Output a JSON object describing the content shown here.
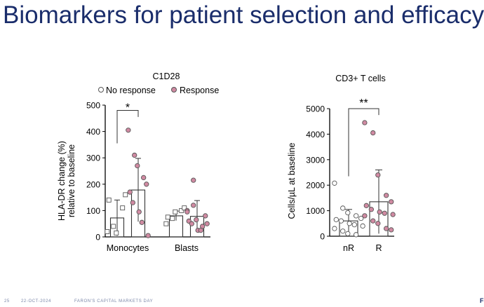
{
  "slide": {
    "title": "Biomarkers for patient selection and efficacy",
    "footer_page": "25",
    "footer_date": "22-OCT-2024",
    "footer_event": "FARON'S CAPITAL MARKETS DAY",
    "logo_text": "F"
  },
  "colors": {
    "title": "#1a2d6b",
    "response_fill": "#d08aa2",
    "no_response_fill": "#ffffff",
    "marker_stroke": "#555555",
    "axis": "#000000"
  },
  "chart_data": [
    {
      "type": "bar",
      "title": "C1D28",
      "ylabel": [
        "HLA-DR change (%)",
        "relative to baseline"
      ],
      "categories": [
        "Monocytes",
        "Blasts"
      ],
      "ylim": [
        0,
        500
      ],
      "yticks": [
        "0",
        "100",
        "200",
        "300",
        "400",
        "500"
      ],
      "legend": {
        "position": "top",
        "entries": [
          "No response",
          "Response"
        ]
      },
      "series": [
        {
          "name": "No response",
          "marker": "square-open",
          "means": [
            72,
            80
          ],
          "sd": [
            68,
            18
          ],
          "points": [
            [
              20,
              40,
              15,
              110,
              160,
              140
            ],
            [
              50,
              70,
              95,
              100,
              110,
              75
            ]
          ]
        },
        {
          "name": "Response",
          "marker": "circle-filled",
          "means": [
            178,
            78
          ],
          "sd": [
            120,
            60
          ],
          "points": [
            [
              405,
              310,
              270,
              225,
              200,
              170,
              130,
              95,
              55,
              5
            ],
            [
              100,
              120,
              65,
              40,
              80,
              60,
              50,
              25,
              25,
              50,
              95,
              215
            ]
          ]
        }
      ],
      "annotations": [
        {
          "text": "*",
          "between": [
            "Monocytes: No response",
            "Monocytes: Response"
          ]
        }
      ]
    },
    {
      "type": "bar",
      "title": "CD3+ T cells",
      "ylabel": "Cells/µL at baseline",
      "categories": [
        "nR",
        "R"
      ],
      "ylim": [
        0,
        5000
      ],
      "yticks": [
        "0",
        "1000",
        "2000",
        "3000",
        "4000",
        "5000"
      ],
      "series": [
        {
          "name": "",
          "means": [
            600,
            1350
          ],
          "sd": [
            450,
            1250
          ],
          "styles": [
            "circle-open",
            "circle-filled"
          ],
          "points": [
            [
              2080,
              1100,
              920,
              800,
              700,
              650,
              600,
              500,
              450,
              400,
              300,
              200,
              100,
              60
            ],
            [
              4450,
              4050,
              2400,
              1600,
              1350,
              1200,
              1050,
              950,
              900,
              850,
              800,
              600,
              500,
              300,
              250
            ]
          ]
        }
      ],
      "annotations": [
        {
          "text": "**",
          "between": [
            "nR",
            "R"
          ]
        }
      ]
    }
  ]
}
